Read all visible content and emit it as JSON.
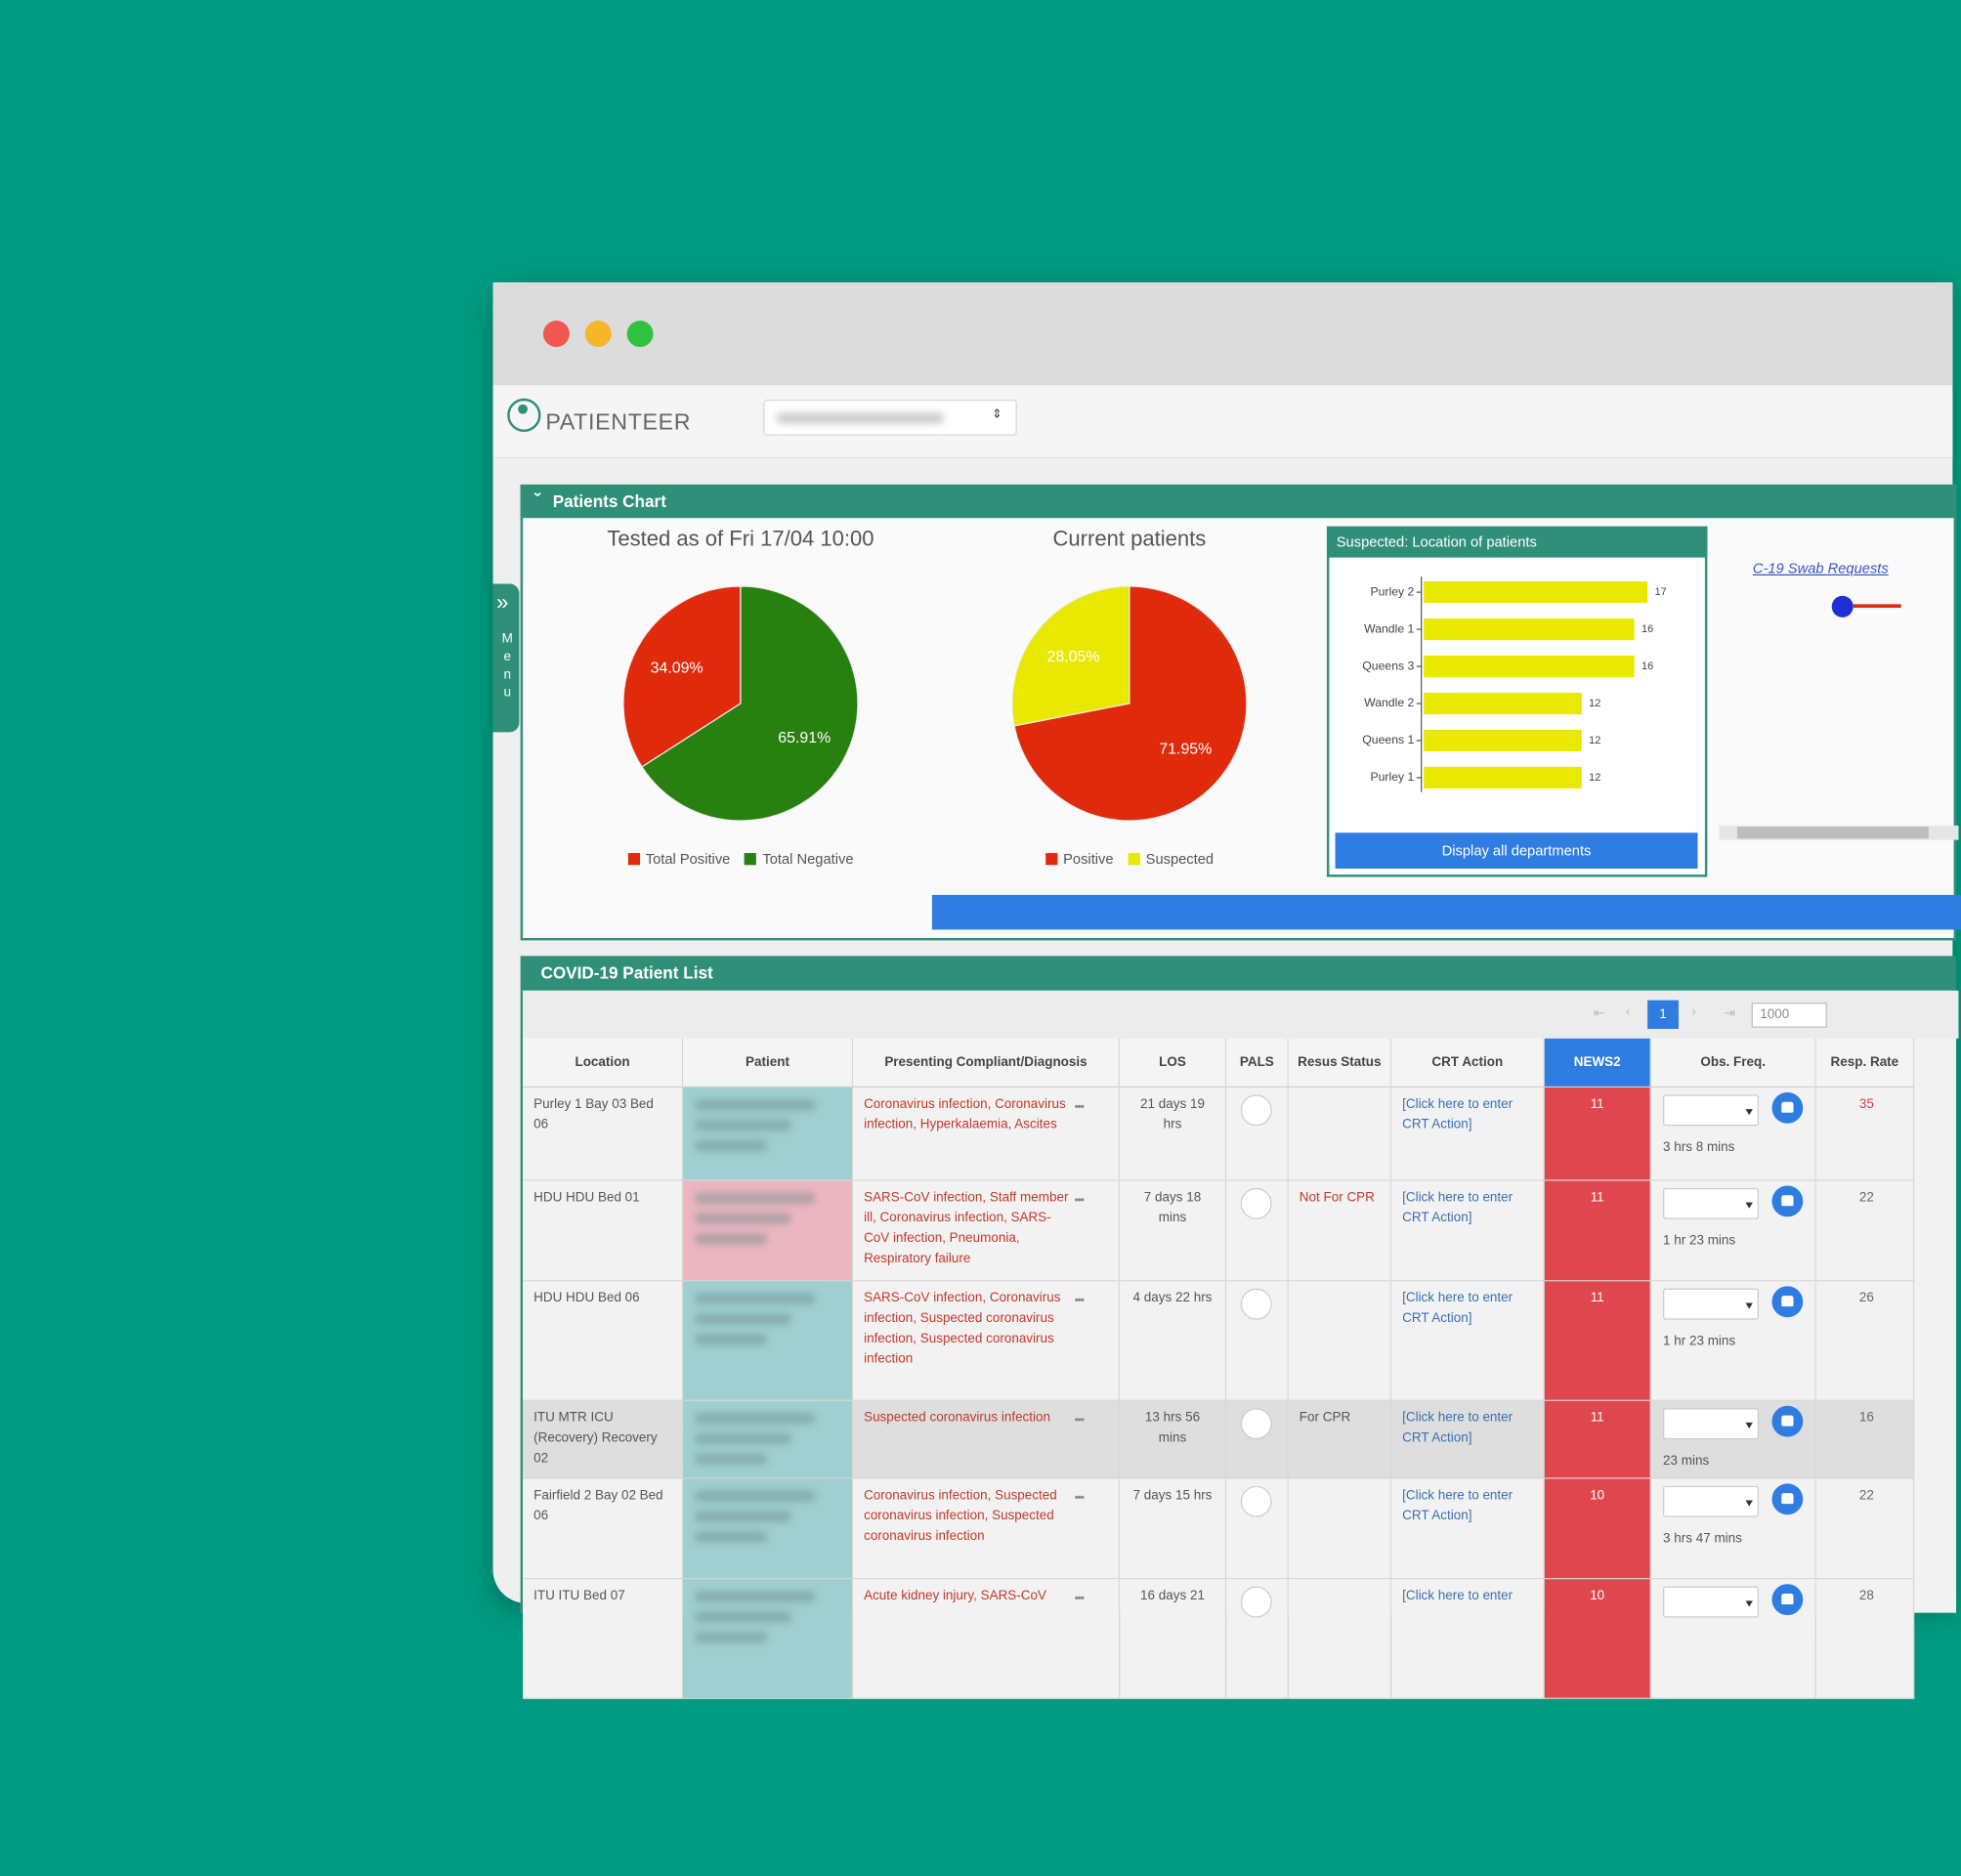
{
  "window": {
    "logo": "PATIENTEER",
    "menu": "Menu"
  },
  "patients_chart": {
    "title": "Patients Chart",
    "tested": {
      "type": "pie",
      "title": "Tested as of Fri 17/04 10:00",
      "labels": [
        "Total Positive",
        "Total Negative"
      ],
      "values": [
        34.09,
        65.91
      ],
      "value_labels": [
        "34.09%",
        "65.91%"
      ],
      "colors": [
        "#e02a0c",
        "#27800f"
      ],
      "direction": "counterclockwise"
    },
    "current": {
      "type": "pie",
      "title": "Current patients",
      "labels": [
        "Positive",
        "Suspected"
      ],
      "values": [
        71.95,
        28.05
      ],
      "value_labels": [
        "71.95%",
        "28.05%"
      ],
      "colors": [
        "#e02a0c",
        "#e8e800"
      ],
      "direction": "clockwise"
    },
    "location": {
      "type": "bar",
      "title": "Suspected: Location of patients",
      "categories": [
        "Purley 2",
        "Wandle 1",
        "Queens 3",
        "Wandle 2",
        "Queens 1",
        "Purley 1"
      ],
      "values": [
        17,
        16,
        16,
        12,
        12,
        12
      ],
      "color": "#e8e800",
      "xlim": [
        0,
        20
      ],
      "button": "Display all departments"
    },
    "swab_link": "C-19 Swab Requests"
  },
  "patient_list": {
    "title": "COVID-19 Patient List",
    "page": 1,
    "page_size": 1000,
    "columns": [
      "Location",
      "Patient",
      "Presenting Compliant/Diagnosis",
      "LOS",
      "PALS",
      "Resus Status",
      "CRT Action",
      "NEWS2",
      "Obs. Freq.",
      "Resp. Rate"
    ],
    "rows": [
      {
        "location": "Purley 1 Bay 03 Bed 06",
        "patient_color": "#9fcfd0",
        "diagnosis": "Coronavirus infection, Coronavirus infection, Hyperkalaemia, Ascites",
        "los": "21 days 19 hrs",
        "crt": "[Click here to enter CRT Action]",
        "news2": 11,
        "obs": "3 hrs 8 mins",
        "resp": 35
      },
      {
        "location": "HDU HDU Bed 01",
        "patient_color": "#ecb6c0",
        "diagnosis": "SARS-CoV infection, Staff member ill, Coronavirus infection, SARS-CoV infection, Pneumonia, Respiratory failure",
        "los": "7 days 18 mins",
        "resus": "Not For CPR",
        "crt": "[Click here to enter CRT Action]",
        "news2": 11,
        "obs": "1 hr 23 mins",
        "resp": 22
      },
      {
        "location": "HDU HDU Bed 06",
        "patient_color": "#9fcfd0",
        "diagnosis": "SARS-CoV infection, Coronavirus infection, Suspected coronavirus infection, Suspected coronavirus infection",
        "los": "4 days 22 hrs",
        "crt": "[Click here to enter CRT Action]",
        "news2": 11,
        "obs": "1 hr 23 mins",
        "resp": 26
      },
      {
        "location": "ITU MTR ICU (Recovery) Recovery 02",
        "patient_color": "#9fcfd0",
        "diagnosis": "Suspected coronavirus infection",
        "los": "13 hrs 56 mins",
        "resus": "For CPR",
        "crt": "[Click here to enter CRT Action]",
        "news2": 11,
        "obs": "23 mins",
        "resp": 16
      },
      {
        "location": "Fairfield 2 Bay 02 Bed 06",
        "patient_color": "#9fcfd0",
        "diagnosis": "Coronavirus infection, Suspected coronavirus infection, Suspected coronavirus infection",
        "los": "7 days 15 hrs",
        "crt": "[Click here to enter CRT Action]",
        "news2": 10,
        "obs": "3 hrs 47 mins",
        "resp": 22
      },
      {
        "location": "ITU ITU Bed 07",
        "patient_color": "#9fcfd0",
        "diagnosis": "Acute kidney injury, SARS-CoV",
        "los": "16 days 21",
        "crt": "[Click here to enter",
        "news2": 10,
        "resp": 28
      }
    ]
  }
}
